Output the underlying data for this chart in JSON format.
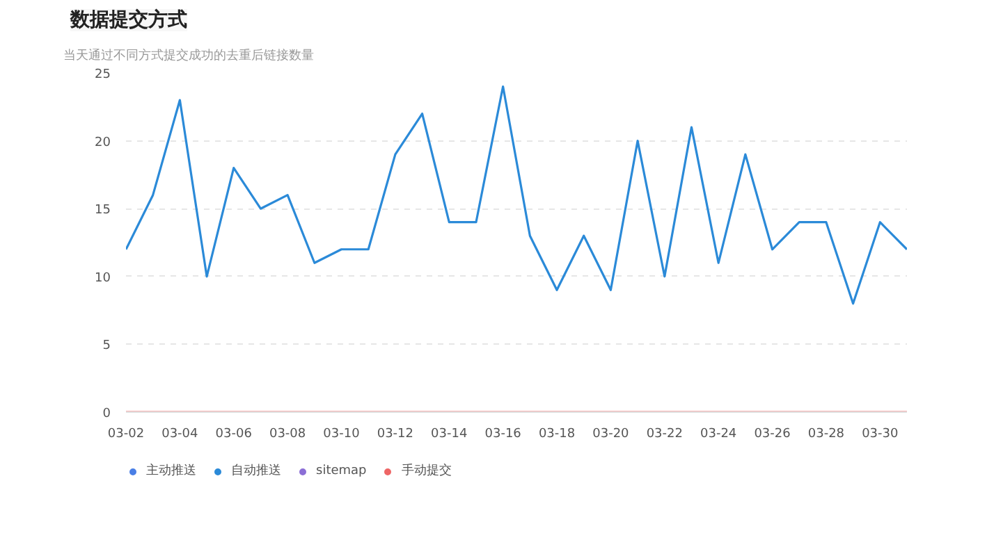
{
  "chart_data": {
    "type": "line",
    "title": "数据提交方式",
    "subtitle": "当天通过不同方式提交成功的去重后链接数量",
    "categories": [
      "03-02",
      null,
      "03-04",
      null,
      "03-06",
      null,
      "03-08",
      null,
      "03-10",
      null,
      "03-12",
      null,
      "03-14",
      null,
      "03-16",
      null,
      "03-18",
      null,
      "03-20",
      null,
      "03-22",
      null,
      "03-24",
      null,
      "03-26",
      null,
      "03-28",
      null,
      "03-30",
      null
    ],
    "series": [
      {
        "name": "主动推送",
        "color": "#4a7fe6",
        "values": [
          null,
          null,
          null,
          null,
          null,
          null,
          null,
          null,
          null,
          null,
          null,
          null,
          null,
          null,
          null,
          null,
          null,
          null,
          null,
          null,
          null,
          null,
          null,
          null,
          null,
          null,
          null,
          null,
          null,
          null
        ]
      },
      {
        "name": "自动推送",
        "color": "#2b8ad8",
        "values": [
          12,
          16,
          23,
          10,
          18,
          15,
          16,
          11,
          12,
          12,
          19,
          22,
          14,
          14,
          24,
          13,
          9,
          13,
          9,
          20,
          10,
          21,
          11,
          19,
          12,
          14,
          14,
          8,
          14,
          12
        ]
      },
      {
        "name": "sitemap",
        "color": "#8c6fd6",
        "values": [
          null,
          null,
          null,
          null,
          null,
          null,
          null,
          null,
          null,
          null,
          null,
          null,
          null,
          null,
          null,
          null,
          null,
          null,
          null,
          null,
          null,
          null,
          null,
          null,
          null,
          null,
          null,
          null,
          null,
          null
        ]
      },
      {
        "name": "手动提交",
        "color": "#ee6666",
        "values": [
          0,
          0,
          0,
          0,
          0,
          0,
          0,
          0,
          0,
          0,
          0,
          0,
          0,
          0,
          0,
          0,
          0,
          0,
          0,
          0,
          0,
          0,
          0,
          0,
          0,
          0,
          0,
          0,
          0,
          0
        ]
      }
    ],
    "ylim": [
      0,
      25
    ],
    "yticks": [
      0,
      5,
      10,
      15,
      20,
      25
    ],
    "grid": "y",
    "legend": "bottom left",
    "marker": "none",
    "line_style": "solid"
  }
}
